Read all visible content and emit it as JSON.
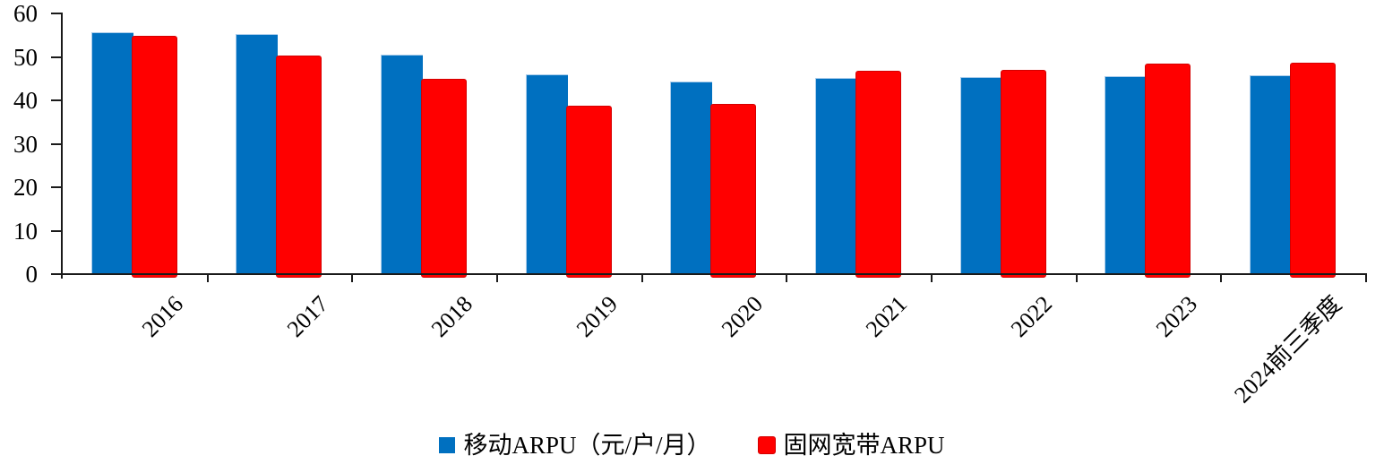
{
  "chart_data": {
    "type": "bar",
    "title": "",
    "xlabel": "",
    "ylabel": "",
    "categories": [
      "2016",
      "2017",
      "2018",
      "2019",
      "2020",
      "2021",
      "2022",
      "2023",
      "2024前三季度"
    ],
    "series": [
      {
        "name": "移动ARPU（元/户/月）",
        "color": "#0070C0",
        "values": [
          55.5,
          55.0,
          50.4,
          45.8,
          44.1,
          45.0,
          45.2,
          45.4,
          45.6
        ]
      },
      {
        "name": "固网宽带ARPU",
        "color": "#FF0000",
        "border_color": "#D40000",
        "values": [
          54.5,
          50.0,
          44.6,
          38.3,
          38.7,
          46.3,
          46.7,
          48.0,
          48.2
        ]
      }
    ],
    "ylim": [
      0,
      60
    ],
    "yticks": [
      0,
      10,
      20,
      30,
      40,
      50,
      60
    ],
    "grid": false,
    "legend_position": "bottom-center",
    "axis_color": "#1A1A1A",
    "x_label_rotation_deg": 45
  }
}
